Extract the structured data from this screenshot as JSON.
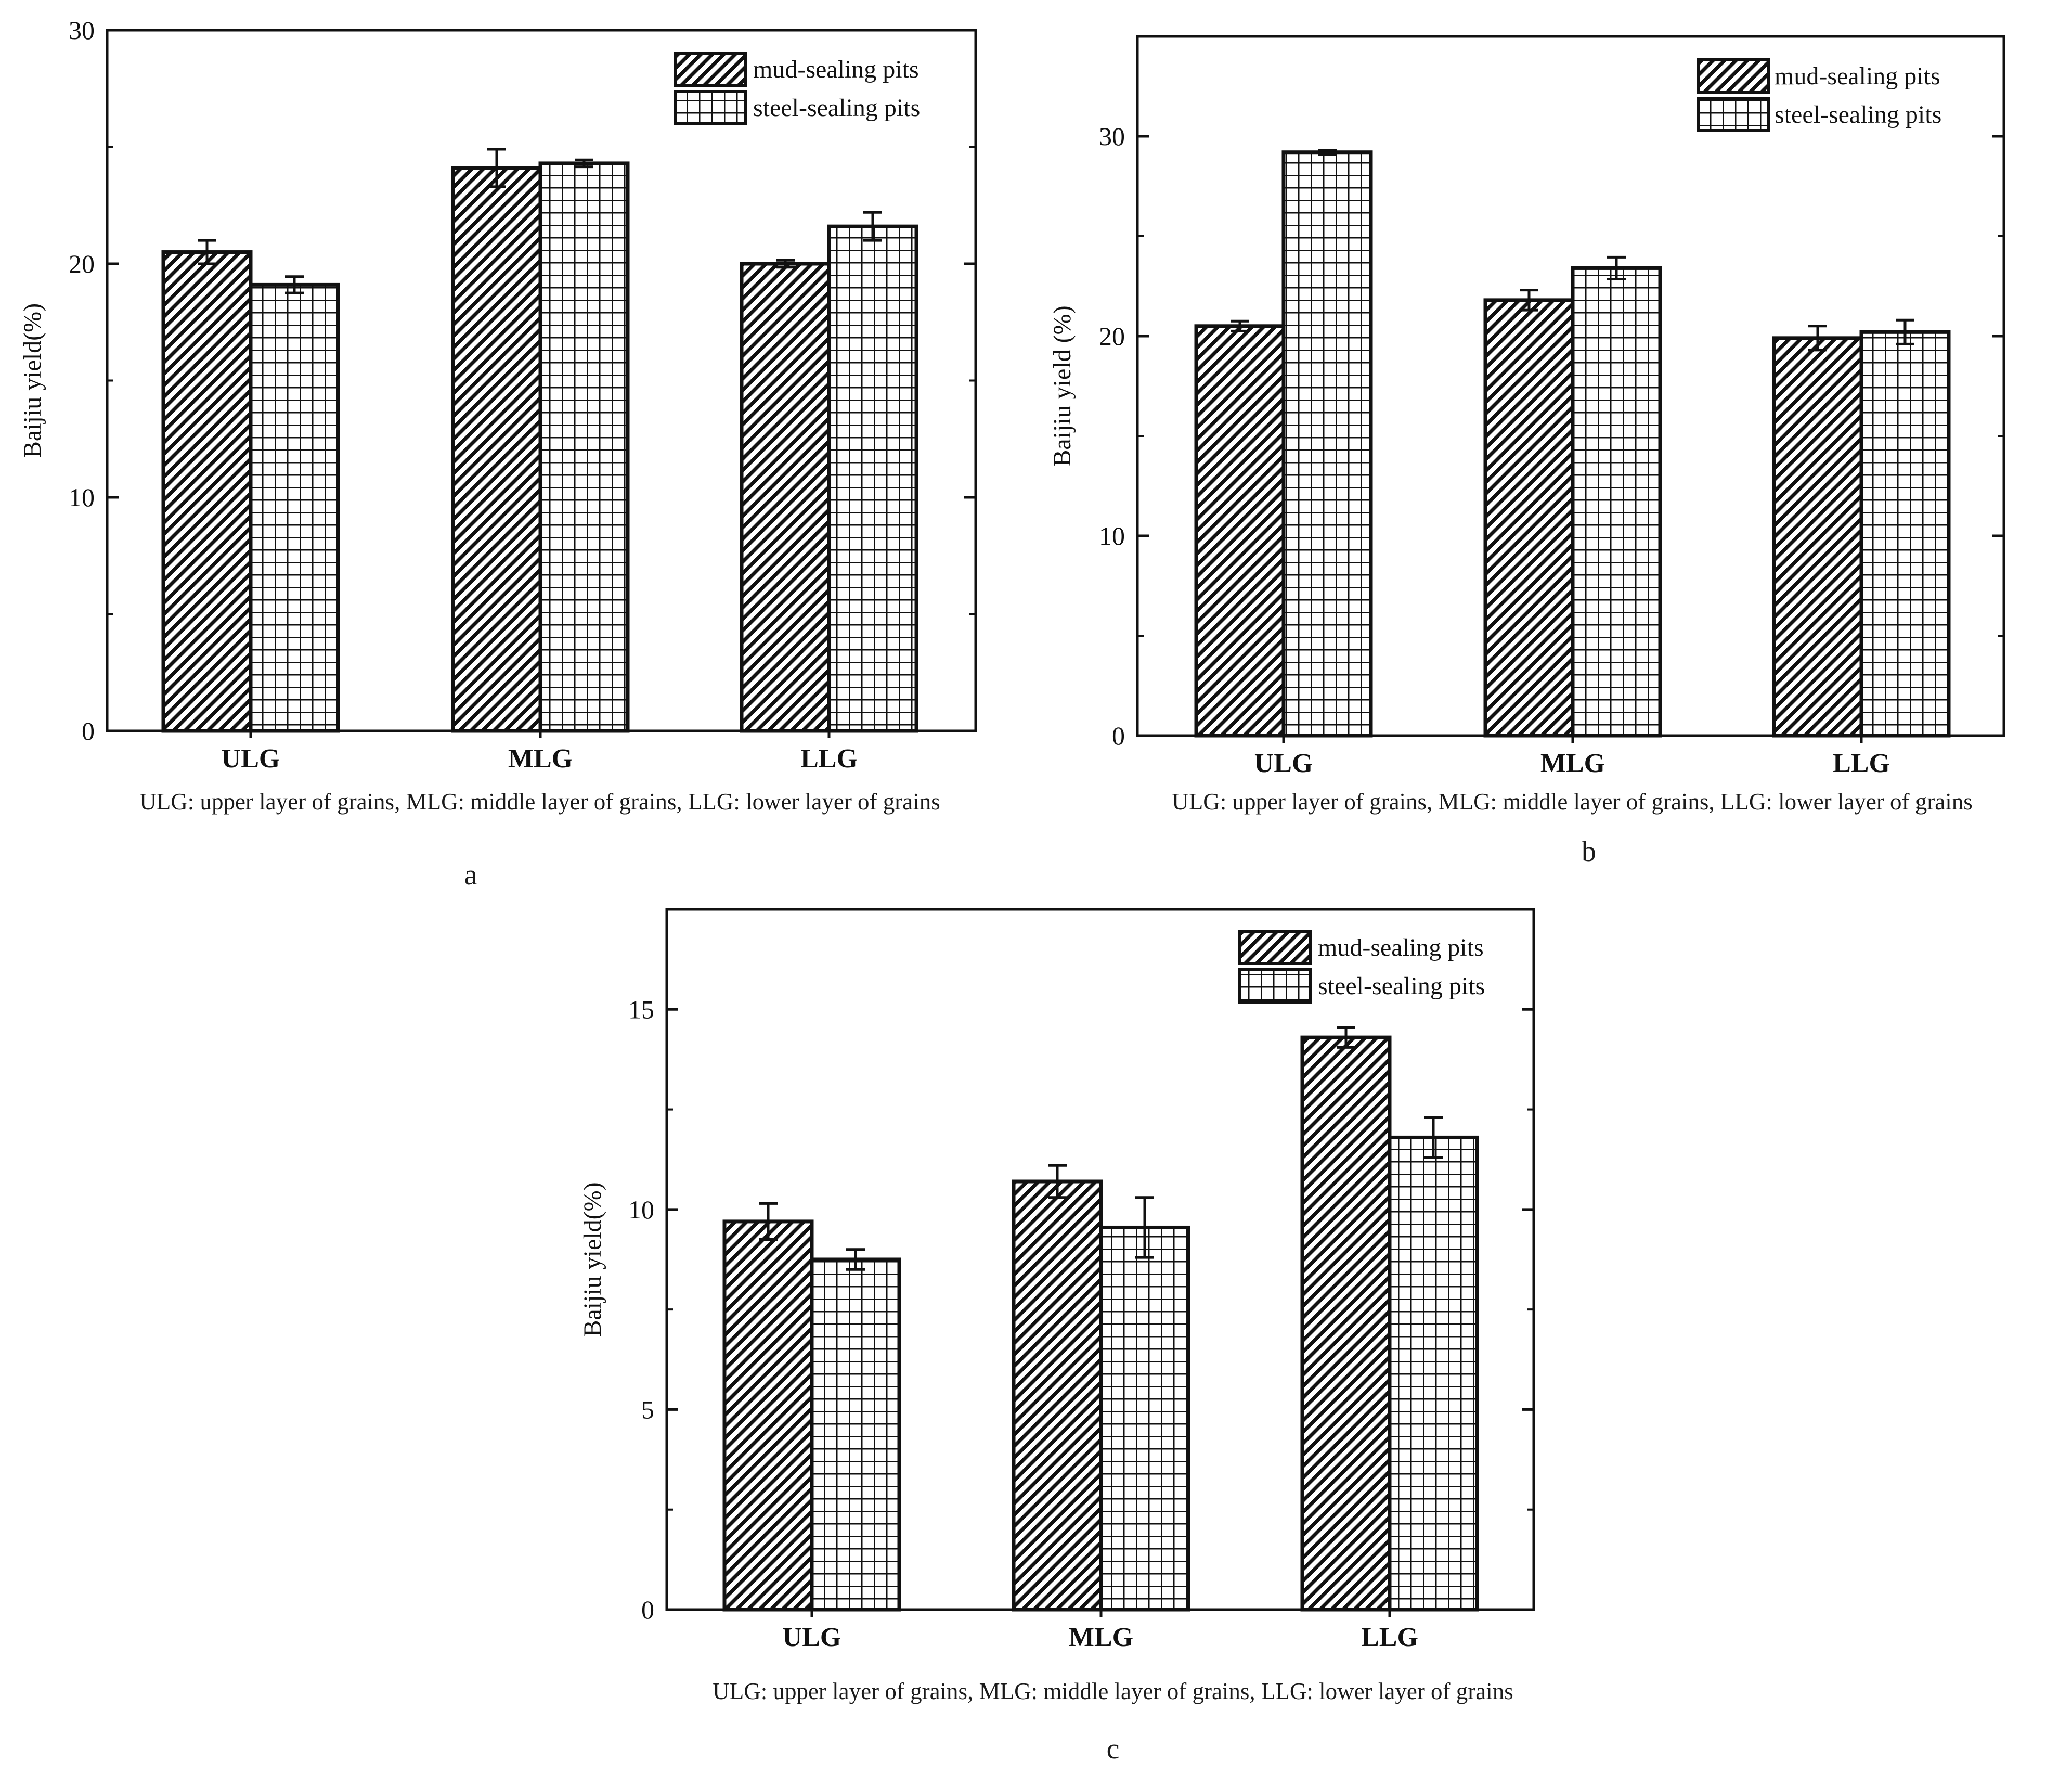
{
  "figure": {
    "letters": [
      "a",
      "b",
      "c"
    ]
  },
  "chart_data": [
    {
      "type": "bar",
      "panel": "a",
      "ylabel": "Baijiu yield(%)",
      "xlabel": "",
      "categories": [
        "ULG",
        "MLG",
        "LLG"
      ],
      "ylim": [
        0,
        30
      ],
      "yticks": [
        0,
        10,
        20,
        30
      ],
      "series": [
        {
          "name": "mud-sealing pits",
          "values": [
            20.5,
            24.1,
            20.0
          ],
          "errors": [
            0.5,
            0.8,
            0.15
          ]
        },
        {
          "name": "steel-sealing pits",
          "values": [
            19.1,
            24.3,
            21.6
          ],
          "errors": [
            0.35,
            0.15,
            0.6
          ]
        }
      ],
      "caption": "ULG: upper layer of grains, MLG: middle layer of grains, LLG: lower layer of grains",
      "legend_position": "top-right"
    },
    {
      "type": "bar",
      "panel": "b",
      "ylabel": "Baijiu yield (%)",
      "xlabel": "",
      "categories": [
        "ULG",
        "MLG",
        "LLG"
      ],
      "ylim": [
        0,
        35
      ],
      "yticks": [
        0,
        10,
        20,
        30
      ],
      "series": [
        {
          "name": "mud-sealing pits",
          "values": [
            20.5,
            21.8,
            19.9
          ],
          "errors": [
            0.25,
            0.5,
            0.6
          ]
        },
        {
          "name": "steel-sealing pits",
          "values": [
            29.2,
            23.4,
            20.2
          ],
          "errors": [
            0.1,
            0.55,
            0.6
          ]
        }
      ],
      "caption": "ULG: upper layer of grains, MLG: middle layer of grains, LLG: lower layer of grains",
      "legend_position": "top-right"
    },
    {
      "type": "bar",
      "panel": "c",
      "ylabel": "Baijiu yield(%)",
      "xlabel": "",
      "categories": [
        "ULG",
        "MLG",
        "LLG"
      ],
      "ylim": [
        0,
        17.5
      ],
      "yticks": [
        0,
        5,
        10,
        15
      ],
      "series": [
        {
          "name": "mud-sealing pits",
          "values": [
            9.7,
            10.7,
            14.3
          ],
          "errors": [
            0.45,
            0.4,
            0.25
          ]
        },
        {
          "name": "steel-sealing pits",
          "values": [
            8.75,
            9.55,
            11.8
          ],
          "errors": [
            0.25,
            0.75,
            0.5
          ]
        }
      ],
      "caption": "ULG: upper layer of grains, MLG: middle layer of grains, LLG: lower layer of grains",
      "legend_position": "top-right"
    }
  ]
}
